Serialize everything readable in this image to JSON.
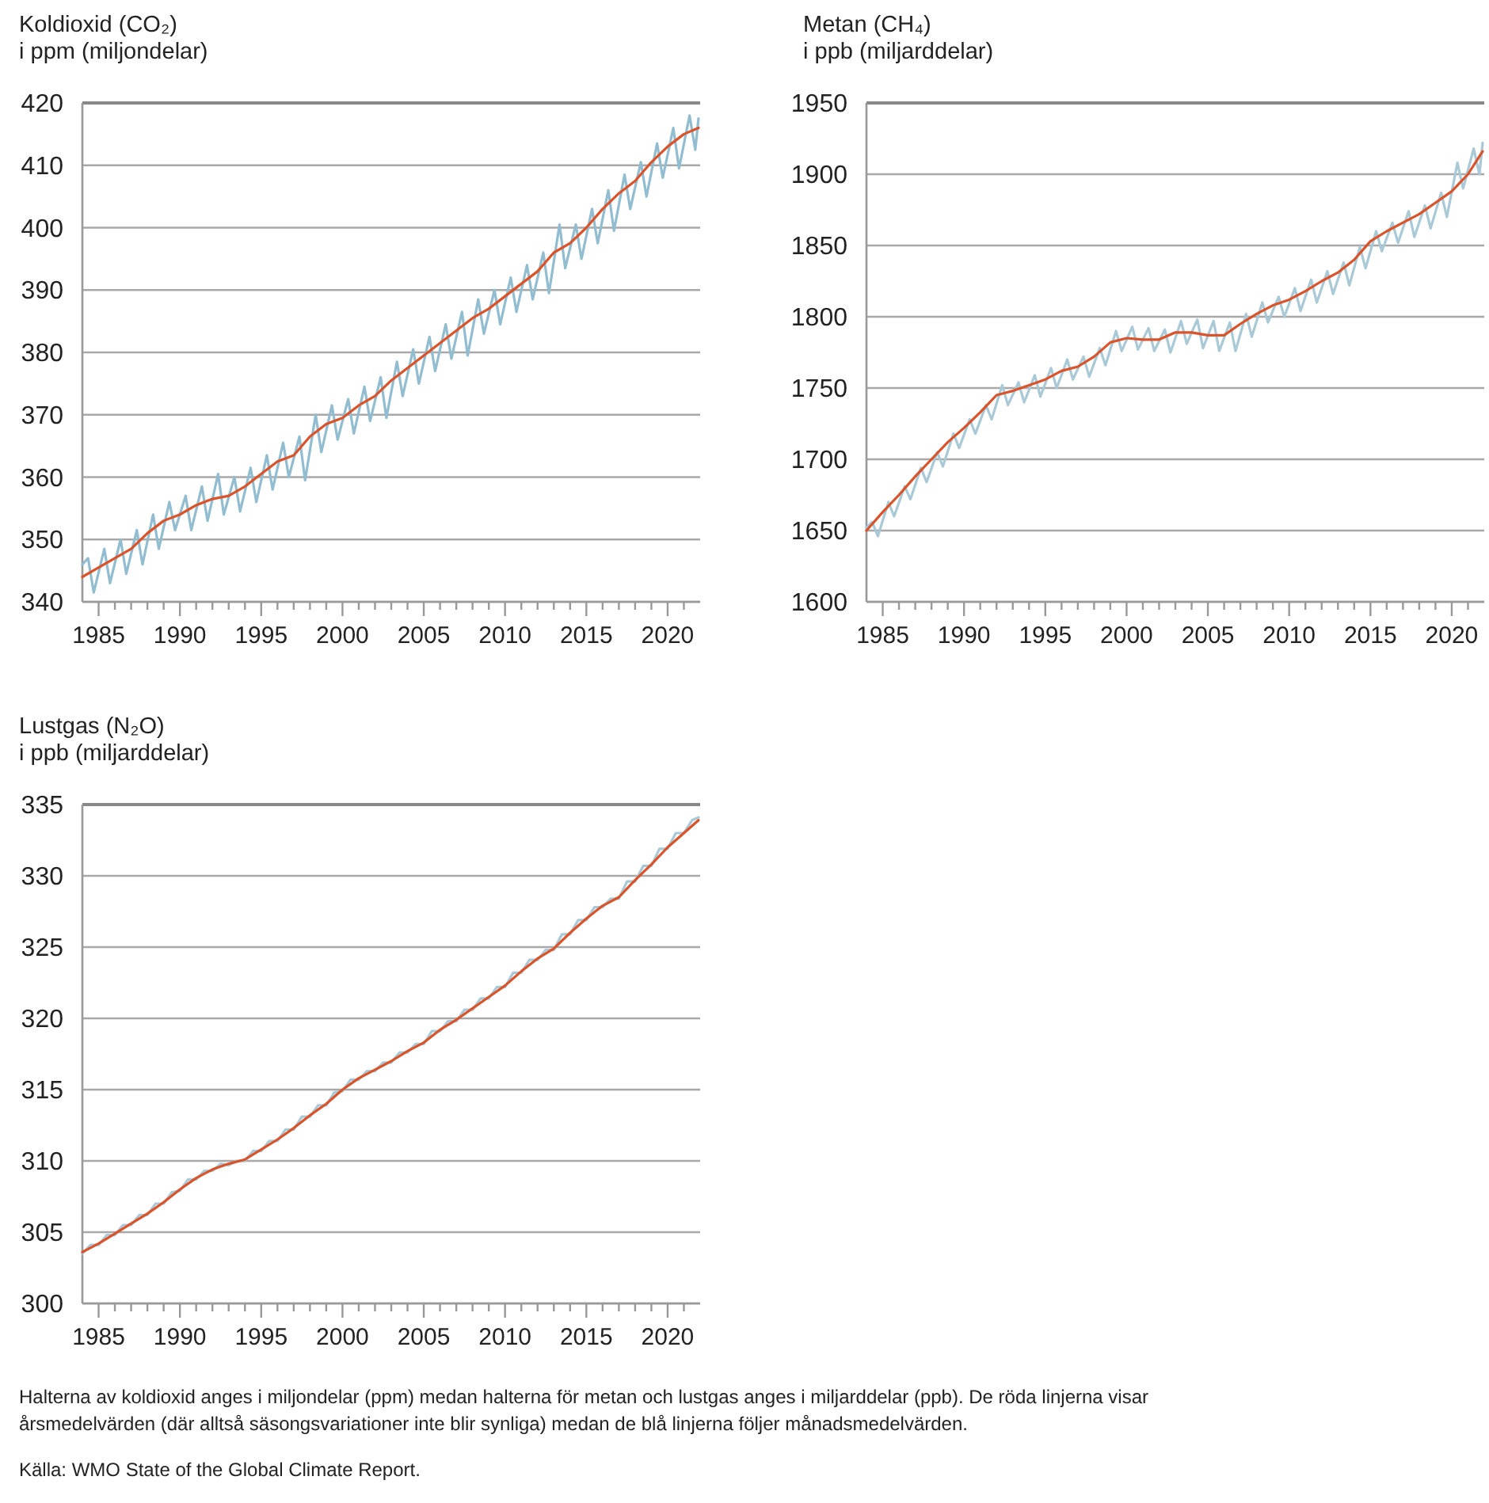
{
  "chart_data": [
    {
      "type": "line",
      "title": "Koldioxid (CO₂)",
      "subtitle": "i ppm (miljondelar)",
      "grid": "y",
      "xlim": [
        1984,
        2022
      ],
      "ylim": [
        340,
        420
      ],
      "yticks": [
        340,
        350,
        360,
        370,
        380,
        390,
        400,
        410,
        420
      ],
      "xticks": [
        1985,
        {
          "value": 1986,
          "label": null
        },
        {
          "value": 1987,
          "label": null
        },
        {
          "value": 1988,
          "label": null
        },
        {
          "value": 1989,
          "label": null
        },
        1990,
        {
          "value": 1991,
          "label": null
        },
        {
          "value": 1992,
          "label": null
        },
        {
          "value": 1993,
          "label": null
        },
        {
          "value": 1994,
          "label": null
        },
        1995,
        {
          "value": 1996,
          "label": null
        },
        {
          "value": 1997,
          "label": null
        },
        {
          "value": 1998,
          "label": null
        },
        {
          "value": 1999,
          "label": null
        },
        2000,
        {
          "value": 2001,
          "label": null
        },
        {
          "value": 2002,
          "label": null
        },
        {
          "value": 2003,
          "label": null
        },
        {
          "value": 2004,
          "label": null
        },
        2005,
        {
          "value": 2006,
          "label": null
        },
        {
          "value": 2007,
          "label": null
        },
        {
          "value": 2008,
          "label": null
        },
        {
          "value": 2009,
          "label": null
        },
        2010,
        {
          "value": 2011,
          "label": null
        },
        {
          "value": 2012,
          "label": null
        },
        {
          "value": 2013,
          "label": null
        },
        {
          "value": 2014,
          "label": null
        },
        2015,
        {
          "value": 2016,
          "label": null
        },
        {
          "value": 2017,
          "label": null
        },
        {
          "value": 2018,
          "label": null
        },
        {
          "value": 2019,
          "label": null
        },
        2020,
        {
          "value": 2021,
          "label": null
        }
      ],
      "series": [
        {
          "color": "#92bdd1",
          "x": [
            1984,
            1984.35,
            1984.7,
            1985.35,
            1985.7,
            1986.35,
            1986.7,
            1987.35,
            1987.7,
            1988.35,
            1988.7,
            1989.35,
            1989.7,
            1990.35,
            1990.7,
            1991.35,
            1991.7,
            1992.35,
            1992.7,
            1993.35,
            1993.7,
            1994.35,
            1994.7,
            1995.35,
            1995.7,
            1996.35,
            1996.7,
            1997.35,
            1997.7,
            1998.35,
            1998.7,
            1999.35,
            1999.7,
            2000.35,
            2000.7,
            2001.35,
            2001.7,
            2002.35,
            2002.7,
            2003.35,
            2003.7,
            2004.35,
            2004.7,
            2005.35,
            2005.7,
            2006.35,
            2006.7,
            2007.35,
            2007.7,
            2008.35,
            2008.7,
            2009.35,
            2009.7,
            2010.35,
            2010.7,
            2011.35,
            2011.7,
            2012.35,
            2012.7,
            2013.35,
            2013.7,
            2014.35,
            2014.7,
            2015.35,
            2015.7,
            2016.35,
            2016.7,
            2017.35,
            2017.7,
            2018.35,
            2018.7,
            2019.35,
            2019.7,
            2020.35,
            2020.7,
            2021.35,
            2021.7,
            2021.9
          ],
          "values": [
            346,
            347,
            341.5,
            348.5,
            343,
            350,
            344.5,
            351.5,
            346,
            354,
            348.5,
            356,
            351.5,
            357,
            351.5,
            358.5,
            353,
            360.5,
            354,
            360,
            354.5,
            361.5,
            356,
            363.5,
            358,
            365.5,
            360,
            366.5,
            359.5,
            370,
            364,
            371.5,
            366,
            372.5,
            367,
            374.5,
            369,
            376,
            369.5,
            378.5,
            373,
            380.5,
            375,
            382.5,
            377,
            384.5,
            379,
            386.5,
            379.5,
            388.5,
            383,
            390,
            384.5,
            392,
            386.5,
            394,
            388.5,
            396,
            389.5,
            400.5,
            393.5,
            400.5,
            395,
            403,
            397.5,
            406,
            399.5,
            408.5,
            403,
            410.5,
            405,
            413.5,
            408,
            416,
            409.5,
            418,
            412.5,
            417.5
          ]
        },
        {
          "color": "#d9532b",
          "x": [
            1984,
            1985,
            1986,
            1987,
            1988,
            1989,
            1990,
            1991,
            1992,
            1993,
            1994,
            1995,
            1996,
            1997,
            1998,
            1999,
            2000,
            2001,
            2002,
            2003,
            2004,
            2005,
            2006,
            2007,
            2008,
            2009,
            2010,
            2011,
            2012,
            2013,
            2014,
            2015,
            2016,
            2017,
            2018,
            2019,
            2020,
            2021,
            2021.9
          ],
          "values": [
            344,
            345.5,
            347,
            348.5,
            351,
            353,
            354,
            355.5,
            356.5,
            357,
            358.5,
            360.5,
            362.5,
            363.5,
            366.5,
            368.5,
            369.5,
            371.5,
            373,
            375.5,
            377.5,
            379.5,
            381.5,
            383.5,
            385.5,
            387,
            389,
            391,
            393,
            396,
            397.5,
            400,
            403,
            405.5,
            407.5,
            410.5,
            413,
            415,
            416
          ]
        }
      ]
    },
    {
      "type": "line",
      "title": "Metan (CH₄)",
      "subtitle": "i ppb (miljarddelar)",
      "grid": "y",
      "xlim": [
        1984,
        2022
      ],
      "ylim": [
        1600,
        1950
      ],
      "yticks": [
        1600,
        1650,
        1700,
        1750,
        1800,
        1850,
        1900,
        1950
      ],
      "xticks": [
        1985,
        {
          "value": 1986,
          "label": null
        },
        {
          "value": 1987,
          "label": null
        },
        {
          "value": 1988,
          "label": null
        },
        {
          "value": 1989,
          "label": null
        },
        1990,
        {
          "value": 1991,
          "label": null
        },
        {
          "value": 1992,
          "label": null
        },
        {
          "value": 1993,
          "label": null
        },
        {
          "value": 1994,
          "label": null
        },
        1995,
        {
          "value": 1996,
          "label": null
        },
        {
          "value": 1997,
          "label": null
        },
        {
          "value": 1998,
          "label": null
        },
        {
          "value": 1999,
          "label": null
        },
        2000,
        {
          "value": 2001,
          "label": null
        },
        {
          "value": 2002,
          "label": null
        },
        {
          "value": 2003,
          "label": null
        },
        {
          "value": 2004,
          "label": null
        },
        2005,
        {
          "value": 2006,
          "label": null
        },
        {
          "value": 2007,
          "label": null
        },
        {
          "value": 2008,
          "label": null
        },
        {
          "value": 2009,
          "label": null
        },
        2010,
        {
          "value": 2011,
          "label": null
        },
        {
          "value": 2012,
          "label": null
        },
        {
          "value": 2013,
          "label": null
        },
        {
          "value": 2014,
          "label": null
        },
        2015,
        {
          "value": 2016,
          "label": null
        },
        {
          "value": 2017,
          "label": null
        },
        {
          "value": 2018,
          "label": null
        },
        {
          "value": 2019,
          "label": null
        },
        2020,
        {
          "value": 2021,
          "label": null
        }
      ],
      "series": [
        {
          "color": "#a9c9d6",
          "x": [
            1984,
            1984.35,
            1984.7,
            1985.35,
            1985.7,
            1986.35,
            1986.7,
            1987.35,
            1987.7,
            1988.35,
            1988.7,
            1989.35,
            1989.7,
            1990.35,
            1990.7,
            1991.35,
            1991.7,
            1992.35,
            1992.7,
            1993.35,
            1993.7,
            1994.35,
            1994.7,
            1995.35,
            1995.7,
            1996.35,
            1996.7,
            1997.35,
            1997.7,
            1998.35,
            1998.7,
            1999.35,
            1999.7,
            2000.35,
            2000.7,
            2001.35,
            2001.7,
            2002.35,
            2002.7,
            2003.35,
            2003.7,
            2004.35,
            2004.7,
            2005.35,
            2005.7,
            2006.35,
            2006.7,
            2007.35,
            2007.7,
            2008.35,
            2008.7,
            2009.35,
            2009.7,
            2010.35,
            2010.7,
            2011.35,
            2011.7,
            2012.35,
            2012.7,
            2013.35,
            2013.7,
            2014.35,
            2014.7,
            2015.35,
            2015.7,
            2016.35,
            2016.7,
            2017.35,
            2017.7,
            2018.35,
            2018.7,
            2019.35,
            2019.7,
            2020.35,
            2020.7,
            2021.35,
            2021.7,
            2021.9
          ],
          "values": [
            1652,
            1656,
            1646,
            1670,
            1660,
            1681,
            1672,
            1694,
            1684,
            1705,
            1695,
            1718,
            1708,
            1728,
            1718,
            1738,
            1728,
            1752,
            1738,
            1754,
            1740,
            1759,
            1744,
            1764,
            1750,
            1770,
            1756,
            1772,
            1758,
            1778,
            1766,
            1790,
            1776,
            1793,
            1777,
            1792,
            1776,
            1791,
            1775,
            1797,
            1781,
            1798,
            1778,
            1797,
            1776,
            1796,
            1776,
            1802,
            1786,
            1810,
            1796,
            1814,
            1800,
            1820,
            1804,
            1826,
            1810,
            1832,
            1816,
            1838,
            1822,
            1849,
            1834,
            1860,
            1846,
            1866,
            1852,
            1874,
            1856,
            1878,
            1862,
            1887,
            1870,
            1908,
            1890,
            1918,
            1900,
            1922
          ]
        },
        {
          "color": "#d9532b",
          "x": [
            1984,
            1985,
            1986,
            1987,
            1988,
            1989,
            1990,
            1991,
            1992,
            1993,
            1994,
            1995,
            1996,
            1997,
            1998,
            1999,
            2000,
            2001,
            2002,
            2003,
            2004,
            2005,
            2006,
            2007,
            2008,
            2009,
            2010,
            2011,
            2012,
            2013,
            2014,
            2015,
            2016,
            2017,
            2018,
            2019,
            2020,
            2021,
            2021.9
          ],
          "values": [
            1650,
            1663,
            1675,
            1688,
            1700,
            1712,
            1722,
            1733,
            1745,
            1748,
            1752,
            1756,
            1762,
            1765,
            1772,
            1782,
            1785,
            1784,
            1784,
            1789,
            1789,
            1787,
            1787,
            1795,
            1802,
            1808,
            1812,
            1818,
            1825,
            1831,
            1840,
            1853,
            1860,
            1866,
            1872,
            1880,
            1888,
            1900,
            1916
          ]
        }
      ]
    },
    {
      "type": "line",
      "title": "Lustgas (N₂O)",
      "subtitle": "i ppb (miljarddelar)",
      "grid": "y",
      "xlim": [
        1984,
        2022
      ],
      "ylim": [
        300,
        335
      ],
      "yticks": [
        300,
        305,
        310,
        315,
        320,
        325,
        330,
        335
      ],
      "xticks": [
        1985,
        {
          "value": 1986,
          "label": null
        },
        {
          "value": 1987,
          "label": null
        },
        {
          "value": 1988,
          "label": null
        },
        {
          "value": 1989,
          "label": null
        },
        1990,
        {
          "value": 1991,
          "label": null
        },
        {
          "value": 1992,
          "label": null
        },
        {
          "value": 1993,
          "label": null
        },
        {
          "value": 1994,
          "label": null
        },
        1995,
        {
          "value": 1996,
          "label": null
        },
        {
          "value": 1997,
          "label": null
        },
        {
          "value": 1998,
          "label": null
        },
        {
          "value": 1999,
          "label": null
        },
        2000,
        {
          "value": 2001,
          "label": null
        },
        {
          "value": 2002,
          "label": null
        },
        {
          "value": 2003,
          "label": null
        },
        {
          "value": 2004,
          "label": null
        },
        2005,
        {
          "value": 2006,
          "label": null
        },
        {
          "value": 2007,
          "label": null
        },
        {
          "value": 2008,
          "label": null
        },
        {
          "value": 2009,
          "label": null
        },
        2010,
        {
          "value": 2011,
          "label": null
        },
        {
          "value": 2012,
          "label": null
        },
        {
          "value": 2013,
          "label": null
        },
        {
          "value": 2014,
          "label": null
        },
        2015,
        {
          "value": 2016,
          "label": null
        },
        {
          "value": 2017,
          "label": null
        },
        {
          "value": 2018,
          "label": null
        },
        {
          "value": 2019,
          "label": null
        },
        2020,
        {
          "value": 2021,
          "label": null
        }
      ],
      "annotations": [
        "Halterna av koldioxid anges i miljondelar (ppm) medan halterna för metan och lustgas anges i miljarddelar (ppb). De röda linjerna visar årsmedelvärden (där alltså säsongsvariationer inte blir synliga) medan de blå linjerna följer månadsmedelvärden.",
        "Källa: WMO State of the Global Climate Report."
      ],
      "series": [
        {
          "color": "#a9c9d6",
          "x": [
            1984,
            1984.5,
            1985,
            1985.5,
            1986,
            1986.5,
            1987,
            1987.5,
            1988,
            1988.5,
            1989,
            1989.5,
            1990,
            1990.5,
            1991,
            1991.5,
            1992,
            1992.5,
            1993,
            1993.5,
            1994,
            1994.5,
            1995,
            1995.5,
            1996,
            1996.5,
            1997,
            1997.5,
            1998,
            1998.5,
            1999,
            1999.5,
            2000,
            2000.5,
            2001,
            2001.5,
            2002,
            2002.5,
            2003,
            2003.5,
            2004,
            2004.5,
            2005,
            2005.5,
            2006,
            2006.5,
            2007,
            2007.5,
            2008,
            2008.5,
            2009,
            2009.5,
            2010,
            2010.5,
            2011,
            2011.5,
            2012,
            2012.5,
            2013,
            2013.5,
            2014,
            2014.5,
            2015,
            2015.5,
            2016,
            2016.5,
            2017,
            2017.5,
            2018,
            2018.5,
            2019,
            2019.5,
            2020,
            2020.5,
            2021,
            2021.5,
            2021.9
          ],
          "values": [
            303.5,
            304.1,
            304.1,
            304.8,
            304.8,
            305.5,
            305.5,
            306.2,
            306.2,
            307,
            307,
            307.8,
            307.9,
            308.7,
            308.7,
            309.3,
            309.3,
            309.8,
            309.7,
            310,
            310,
            310.7,
            310.7,
            311.4,
            311.4,
            312.2,
            312.2,
            313.1,
            313.1,
            313.9,
            313.9,
            314.8,
            314.9,
            315.7,
            315.7,
            316.3,
            316.3,
            316.9,
            316.9,
            317.6,
            317.6,
            318.2,
            318.2,
            319.1,
            319.1,
            319.8,
            319.8,
            320.6,
            320.6,
            321.4,
            321.4,
            322.2,
            322.2,
            323.2,
            323.2,
            324.1,
            324.1,
            324.8,
            324.8,
            325.9,
            325.9,
            326.9,
            326.9,
            327.8,
            327.8,
            328.4,
            328.4,
            329.6,
            329.6,
            330.7,
            330.7,
            331.9,
            331.9,
            333,
            333,
            333.9,
            334.1
          ]
        },
        {
          "color": "#d9532b",
          "x": [
            1984,
            1985,
            1986,
            1987,
            1988,
            1989,
            1990,
            1991,
            1992,
            1993,
            1994,
            1995,
            1996,
            1997,
            1998,
            1999,
            2000,
            2001,
            2002,
            2003,
            2004,
            2005,
            2006,
            2007,
            2008,
            2009,
            2010,
            2011,
            2012,
            2013,
            2014,
            2015,
            2016,
            2017,
            2018,
            2019,
            2020,
            2021,
            2021.9
          ],
          "values": [
            303.6,
            304.2,
            304.9,
            305.6,
            306.3,
            307.1,
            308,
            308.8,
            309.4,
            309.8,
            310.1,
            310.8,
            311.5,
            312.3,
            313.2,
            314,
            315,
            315.8,
            316.4,
            317,
            317.7,
            318.3,
            319.2,
            319.9,
            320.7,
            321.5,
            322.3,
            323.3,
            324.2,
            324.9,
            326,
            327,
            327.9,
            328.5,
            329.7,
            330.8,
            332,
            333,
            333.9
          ]
        }
      ]
    }
  ]
}
